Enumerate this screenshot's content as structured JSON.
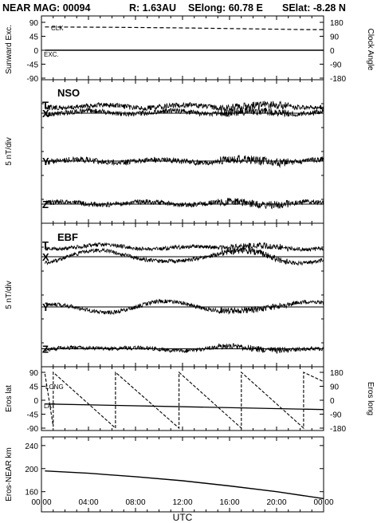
{
  "header": {
    "title": "NEAR MAG: 00094",
    "r": "R: 1.63AU",
    "selong": "SElong:   60.78 E",
    "selat": "SElat:   -8.28 N"
  },
  "x_axis": {
    "label": "UTC",
    "ticks": [
      "00:00",
      "04:00",
      "08:00",
      "12:00",
      "16:00",
      "20:00",
      "00:00"
    ]
  },
  "chart_data": [
    {
      "type": "line",
      "panel": "sunward",
      "ylabel": "Sunward Exc.",
      "y2label": "Clock Angle",
      "yticks": [
        "90",
        "45",
        "0",
        "-45",
        "-90"
      ],
      "y2ticks": [
        "180",
        "90",
        "0",
        "-90",
        "-180"
      ],
      "ylim": [
        -90,
        90
      ],
      "y2lim": [
        -180,
        180
      ],
      "series": [
        {
          "name": "CLK",
          "style": "dashed",
          "x_hours": [
            0.3,
            6,
            12,
            18,
            22.3,
            24
          ],
          "values": [
            150,
            148,
            144,
            138,
            133,
            133
          ]
        },
        {
          "name": "EXC.",
          "style": "solid",
          "x_hours": [
            0.3,
            24
          ],
          "values": [
            0,
            0
          ]
        }
      ]
    },
    {
      "type": "line",
      "panel": "nso",
      "label": "NSO",
      "ylabel": "5 nT/div",
      "traces": [
        {
          "name": "T",
          "baseline_divs": 4.75
        },
        {
          "name": "X",
          "baseline_divs": 4.6
        },
        {
          "name": "Y",
          "baseline_divs": 2.6
        },
        {
          "name": "Z",
          "baseline_divs": 0.8
        }
      ]
    },
    {
      "type": "line",
      "panel": "ebf",
      "label": "EBF",
      "ylabel": "5 nT/div",
      "traces": [
        {
          "name": "T",
          "baseline_divs": 4.9
        },
        {
          "name": "X",
          "baseline_divs": 4.6
        },
        {
          "name": "Y",
          "baseline_divs": 2.5
        },
        {
          "name": "Z",
          "baseline_divs": 0.75
        }
      ]
    },
    {
      "type": "line",
      "panel": "eros",
      "ylabel": "Eros lat",
      "y2label": "Eros long",
      "yticks": [
        "90",
        "45",
        "0",
        "-45",
        "-90"
      ],
      "y2ticks": [
        "180",
        "90",
        "0",
        "-90",
        "-180"
      ],
      "ylim": [
        -90,
        90
      ],
      "y2lim": [
        -180,
        180
      ],
      "series": [
        {
          "name": "LONG",
          "style": "dashed",
          "x_hours": [
            0.3,
            1.0,
            1.0,
            6.3,
            6.3,
            11.7,
            11.7,
            17.0,
            17.0,
            22.3,
            22.3,
            24.0
          ],
          "values": [
            170,
            -170,
            180,
            -180,
            180,
            -180,
            180,
            -180,
            180,
            -180,
            180,
            120
          ]
        },
        {
          "name": "LAT",
          "style": "solid",
          "x_hours": [
            0.3,
            24
          ],
          "values": [
            -12,
            -30
          ]
        }
      ]
    },
    {
      "type": "line",
      "panel": "range",
      "ylabel": "Eros-NEAR km",
      "yticks": [
        "240",
        "200",
        "160"
      ],
      "ylim": [
        125,
        255
      ],
      "series": [
        {
          "name": "",
          "style": "solid",
          "x_hours": [
            0.3,
            4,
            8,
            12,
            16,
            20,
            24
          ],
          "values": [
            196,
            192,
            186,
            179,
            170,
            160,
            148
          ]
        }
      ]
    }
  ]
}
